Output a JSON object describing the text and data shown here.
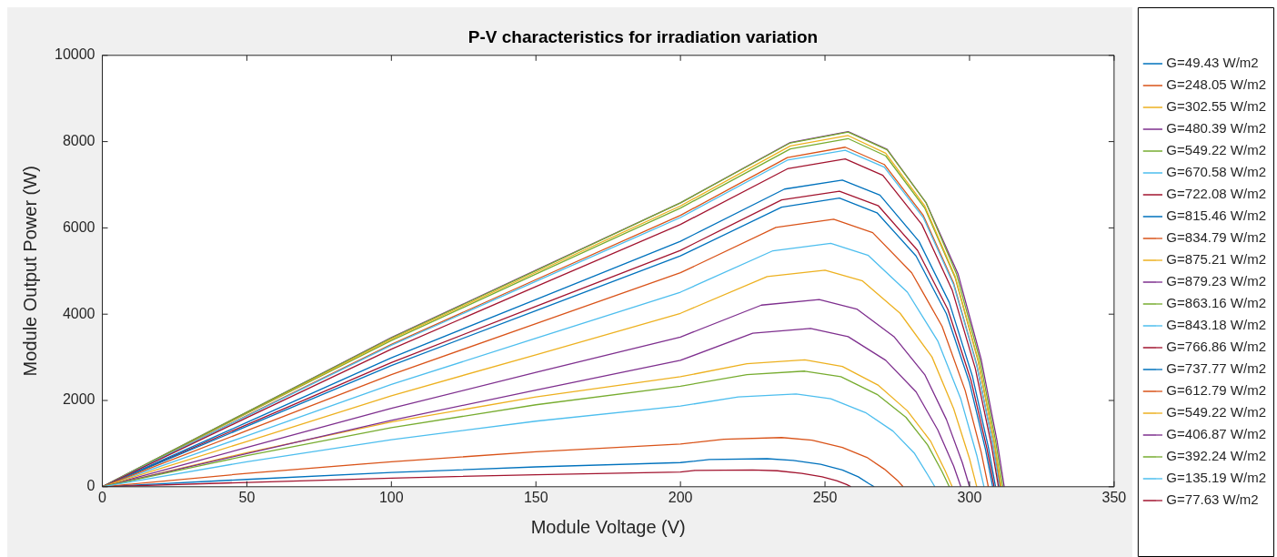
{
  "chart_data": {
    "type": "line",
    "title": "P-V characteristics for irradiation variation",
    "xlabel": "Module Voltage (V)",
    "ylabel": "Module Output Power (W)",
    "xlim": [
      0,
      350
    ],
    "xticks": [
      0,
      50,
      100,
      150,
      200,
      250,
      300,
      350
    ],
    "ylim": [
      0,
      10000
    ],
    "yticks": [
      0,
      2000,
      4000,
      6000,
      8000,
      10000
    ],
    "grid": false,
    "legend": "right",
    "marker": "none",
    "line_style": "solid",
    "series": [
      {
        "name": "G=49.43 W/m2",
        "color": "#0072bd",
        "x": [
          0,
          50,
          100,
          150,
          200,
          210,
          230,
          239,
          248.5,
          256,
          261.5,
          265,
          267
        ],
        "values": [
          0,
          170,
          330,
          460,
          560,
          630,
          650,
          610,
          520,
          390,
          230,
          80,
          0
        ]
      },
      {
        "name": "G=248.05 W/m2",
        "color": "#d95319",
        "x": [
          0,
          50,
          100,
          150,
          200,
          215,
          235,
          245.5,
          256,
          264.5,
          270.5,
          275,
          277
        ],
        "values": [
          0,
          310,
          580,
          810,
          990,
          1100,
          1140,
          1080,
          910,
          680,
          410,
          150,
          0
        ]
      },
      {
        "name": "G=302.55 W/m2",
        "color": "#edb120",
        "x": [
          0,
          50,
          100,
          150,
          200,
          223,
          243,
          256,
          268.5,
          278.5,
          286.5,
          291.5,
          294
        ],
        "values": [
          0,
          790,
          1500,
          2080,
          2550,
          2850,
          2940,
          2790,
          2350,
          1760,
          1060,
          380,
          0
        ]
      },
      {
        "name": "G=480.39 W/m2",
        "color": "#7e2f8e",
        "x": [
          0,
          50,
          100,
          150,
          200,
          228,
          248,
          261,
          274,
          284.5,
          292,
          297.5,
          300
        ],
        "values": [
          0,
          910,
          1820,
          2650,
          3470,
          4210,
          4340,
          4120,
          3470,
          2600,
          1560,
          560,
          0
        ]
      },
      {
        "name": "G=549.22 W/m2",
        "color": "#77ac30",
        "x": [
          0,
          50,
          100,
          150,
          200,
          238,
          258,
          271,
          284.5,
          295,
          303,
          308.5,
          310.8
        ],
        "values": [
          0,
          1700,
          3390,
          4930,
          6460,
          7830,
          8070,
          7670,
          6460,
          4850,
          2910,
          1050,
          0
        ]
      },
      {
        "name": "G=670.58 W/m2",
        "color": "#4dbeee",
        "x": [
          0,
          50,
          100,
          150,
          200,
          232,
          252,
          265,
          278.5,
          289,
          297,
          302.5,
          305
        ],
        "values": [
          0,
          1180,
          2370,
          3440,
          4510,
          5470,
          5640,
          5360,
          4510,
          3380,
          2030,
          730,
          0
        ]
      },
      {
        "name": "G=722.08 W/m2",
        "color": "#a2142f",
        "x": [
          0,
          50,
          100,
          150,
          200,
          235,
          255,
          268.5,
          282,
          292.5,
          300.5,
          306,
          308.5
        ],
        "values": [
          0,
          1440,
          2880,
          4180,
          5480,
          6650,
          6850,
          6510,
          5480,
          4110,
          2470,
          890,
          0
        ]
      },
      {
        "name": "G=815.46 W/m2",
        "color": "#0072bd",
        "x": [
          0,
          50,
          100,
          150,
          200,
          236,
          256,
          269,
          282.5,
          293,
          301,
          306.5,
          309
        ],
        "values": [
          0,
          1490,
          2990,
          4340,
          5690,
          6900,
          7110,
          6760,
          5690,
          4270,
          2560,
          920,
          0
        ]
      },
      {
        "name": "G=834.79 W/m2",
        "color": "#d95319",
        "x": [
          0,
          50,
          100,
          150,
          200,
          237,
          257,
          270.5,
          284,
          294.5,
          302.5,
          308,
          310.5
        ],
        "values": [
          0,
          1650,
          3300,
          4800,
          6290,
          7630,
          7870,
          7470,
          6290,
          4720,
          2830,
          1020,
          0
        ]
      },
      {
        "name": "G=875.21 W/m2",
        "color": "#edb120",
        "x": [
          0,
          50,
          100,
          150,
          200,
          238,
          258,
          271,
          284.5,
          295,
          303,
          308.5,
          311
        ],
        "values": [
          0,
          1710,
          3420,
          4970,
          6510,
          7900,
          8140,
          7730,
          6510,
          4880,
          2930,
          1060,
          0
        ]
      },
      {
        "name": "G=879.23 W/m2",
        "color": "#7e2f8e",
        "x": [
          0,
          50,
          100,
          150,
          200,
          238,
          258,
          271.5,
          285,
          296,
          304,
          309.5,
          312
        ],
        "values": [
          0,
          1730,
          3460,
          5020,
          6580,
          7980,
          8230,
          7820,
          6580,
          4940,
          2960,
          1070,
          0
        ]
      },
      {
        "name": "G=863.16 W/m2",
        "color": "#77ac30",
        "x": [
          0,
          50,
          100,
          150,
          200,
          238,
          258,
          271.5,
          285,
          295.5,
          303.5,
          309,
          311.5
        ],
        "values": [
          0,
          1730,
          3450,
          5010,
          6580,
          7970,
          8220,
          7810,
          6580,
          4930,
          2960,
          1070,
          0
        ]
      },
      {
        "name": "G=843.18 W/m2",
        "color": "#4dbeee",
        "x": [
          0,
          50,
          100,
          150,
          200,
          237,
          257,
          270.5,
          284,
          294.5,
          302.5,
          308,
          310.3
        ],
        "values": [
          0,
          1640,
          3280,
          4760,
          6240,
          7570,
          7800,
          7410,
          6240,
          4680,
          2810,
          1010,
          0
        ]
      },
      {
        "name": "G=766.86 W/m2",
        "color": "#a2142f",
        "x": [
          0,
          50,
          100,
          150,
          200,
          237,
          257,
          270,
          283.5,
          294,
          302,
          307.5,
          310
        ],
        "values": [
          0,
          1600,
          3190,
          4640,
          6080,
          7370,
          7600,
          7220,
          6080,
          4560,
          2740,
          990,
          0
        ]
      },
      {
        "name": "G=737.77 W/m2",
        "color": "#0072bd",
        "x": [
          0,
          50,
          100,
          150,
          200,
          235,
          255,
          268,
          281.5,
          292,
          300,
          305.5,
          308
        ],
        "values": [
          0,
          1400,
          2810,
          4080,
          5350,
          6480,
          6690,
          6350,
          5350,
          4010,
          2410,
          870,
          0
        ]
      },
      {
        "name": "G=612.79 W/m2",
        "color": "#d95319",
        "x": [
          0,
          50,
          100,
          150,
          200,
          233,
          253,
          266.5,
          280,
          290.5,
          298.5,
          304,
          306.5
        ],
        "values": [
          0,
          1300,
          2600,
          3780,
          4960,
          6010,
          6200,
          5890,
          4960,
          3720,
          2230,
          810,
          0
        ]
      },
      {
        "name": "G=549.22 W/m2",
        "color": "#edb120",
        "x": [
          0,
          50,
          100,
          150,
          200,
          230,
          250,
          263,
          276,
          287,
          294.5,
          300,
          302.5
        ],
        "values": [
          0,
          1050,
          2110,
          3060,
          4020,
          4870,
          5020,
          4770,
          4020,
          3010,
          1810,
          650,
          0
        ]
      },
      {
        "name": "G=406.87 W/m2",
        "color": "#7e2f8e",
        "x": [
          0,
          50,
          100,
          150,
          200,
          225,
          245,
          258,
          271,
          281.5,
          289,
          294.5,
          297
        ],
        "values": [
          0,
          770,
          1540,
          2240,
          2930,
          3560,
          3670,
          3480,
          2930,
          2200,
          1320,
          480,
          0
        ]
      },
      {
        "name": "G=392.24 W/m2",
        "color": "#77ac30",
        "x": [
          0,
          50,
          100,
          150,
          200,
          223,
          243,
          255.5,
          268,
          278,
          285.5,
          290.5,
          293
        ],
        "values": [
          0,
          720,
          1370,
          1900,
          2330,
          2600,
          2680,
          2550,
          2140,
          1610,
          970,
          350,
          0
        ]
      },
      {
        "name": "G=135.19 W/m2",
        "color": "#4dbeee",
        "x": [
          0,
          50,
          100,
          150,
          200,
          220,
          240,
          252,
          264,
          273.5,
          281,
          285.5,
          288
        ],
        "values": [
          0,
          580,
          1090,
          1520,
          1870,
          2080,
          2150,
          2040,
          1720,
          1290,
          770,
          280,
          0
        ]
      },
      {
        "name": "G=77.63 W/m2",
        "color": "#a2142f",
        "x": [
          0,
          50,
          100,
          150,
          200,
          205,
          225,
          233.5,
          242,
          249,
          254,
          257.5,
          259
        ],
        "values": [
          0,
          100,
          200,
          280,
          340,
          380,
          390,
          370,
          310,
          230,
          140,
          50,
          0
        ]
      }
    ]
  }
}
